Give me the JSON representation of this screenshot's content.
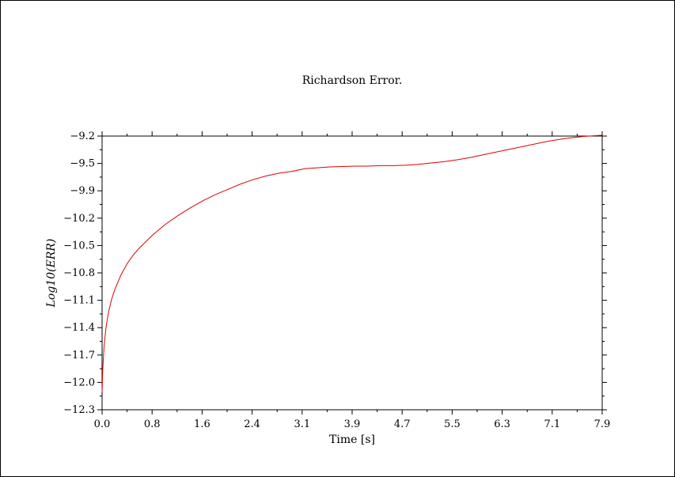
{
  "chart_data": {
    "type": "line",
    "title": "Richardson Error.",
    "xlabel": "Time [s]",
    "ylabel": "Log10(ERR)",
    "xlim": [
      0.0,
      7.9
    ],
    "ylim": [
      -12.3,
      -9.2
    ],
    "xticks": [
      "0.0",
      "0.8",
      "1.6",
      "2.4",
      "3.1",
      "3.9",
      "4.7",
      "5.5",
      "6.3",
      "7.1",
      "7.9"
    ],
    "yticks": [
      "-9.2",
      "-9.5",
      "-9.9",
      "-10.2",
      "-10.5",
      "-10.8",
      "-11.1",
      "-11.4",
      "-11.7",
      "-12.0",
      "-12.3"
    ],
    "grid": false,
    "line_color": "#e00000",
    "series": [
      {
        "x": [
          0.0,
          0.01,
          0.03,
          0.06,
          0.1,
          0.15,
          0.2,
          0.3,
          0.4,
          0.5,
          0.6,
          0.8,
          1.0,
          1.2,
          1.4,
          1.6,
          1.8,
          2.0,
          2.2,
          2.4,
          2.6,
          2.8,
          3.0,
          3.2,
          3.4,
          3.6,
          3.8,
          4.0,
          4.2,
          4.4,
          4.6,
          4.8,
          5.0,
          5.2,
          5.4,
          5.6,
          5.8,
          6.0,
          6.2,
          6.4,
          6.6,
          6.8,
          7.0,
          7.2,
          7.4,
          7.6,
          7.8,
          7.9
        ],
        "y": [
          -12.1,
          -11.85,
          -11.6,
          -11.38,
          -11.2,
          -11.05,
          -10.94,
          -10.77,
          -10.64,
          -10.54,
          -10.46,
          -10.32,
          -10.2,
          -10.1,
          -10.01,
          -9.93,
          -9.86,
          -9.8,
          -9.74,
          -9.69,
          -9.65,
          -9.62,
          -9.6,
          -9.57,
          -9.56,
          -9.55,
          -9.545,
          -9.54,
          -9.54,
          -9.535,
          -9.535,
          -9.53,
          -9.52,
          -9.505,
          -9.49,
          -9.47,
          -9.445,
          -9.415,
          -9.385,
          -9.355,
          -9.325,
          -9.295,
          -9.265,
          -9.24,
          -9.22,
          -9.205,
          -9.195,
          -9.19
        ]
      }
    ]
  }
}
